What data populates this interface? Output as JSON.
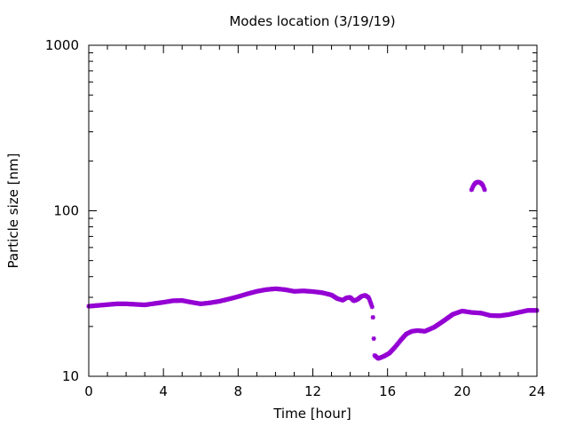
{
  "chart_data": {
    "type": "scatter",
    "title": "Modes location (3/19/19)",
    "xlabel": "Time [hour]",
    "ylabel": "Particle size [nm]",
    "xlim": [
      0,
      24
    ],
    "ylim": [
      10,
      1000
    ],
    "yscale": "log",
    "xticks": [
      0,
      4,
      8,
      12,
      16,
      20,
      24
    ],
    "xtick_labels": [
      "0",
      "4",
      "8",
      "12",
      "16",
      "20",
      "24"
    ],
    "yticks": [
      10,
      100,
      1000
    ],
    "ytick_labels": [
      "10",
      "100",
      "1000"
    ],
    "grid": false,
    "legend": "none",
    "marker_color": "#9400d3",
    "series": [
      {
        "x": [
          0,
          0.5,
          1,
          1.5,
          2,
          2.5,
          3,
          3.5,
          4,
          4.5,
          5,
          5.5,
          6,
          6.5,
          7,
          7.5,
          8,
          8.5,
          9,
          9.5,
          10,
          10.5,
          11,
          11.5,
          12,
          12.5,
          13,
          13.3,
          13.6,
          13.8,
          14.0,
          14.2,
          14.4,
          14.6,
          14.8,
          15.0,
          15.2,
          15.3,
          15.5,
          15.8,
          16.1,
          16.4,
          16.7,
          17.0,
          17.3,
          17.6,
          18.0,
          18.5,
          19.0,
          19.5,
          20.0,
          20.5,
          21.0,
          21.5,
          22.0,
          22.5,
          23.0,
          23.5,
          24.0
        ],
        "y": [
          26.5,
          26.8,
          27.1,
          27.4,
          27.4,
          27.2,
          27.0,
          27.5,
          28.0,
          28.6,
          28.7,
          28.0,
          27.4,
          27.8,
          28.4,
          29.3,
          30.3,
          31.5,
          32.6,
          33.4,
          33.8,
          33.4,
          32.6,
          32.8,
          32.5,
          32.0,
          31.0,
          29.5,
          28.8,
          29.8,
          30.0,
          28.5,
          29.2,
          30.4,
          30.9,
          29.8,
          25.8,
          13.4,
          12.8,
          13.2,
          13.8,
          15.0,
          16.5,
          18.0,
          18.7,
          18.9,
          18.7,
          19.8,
          21.6,
          23.7,
          24.8,
          24.3,
          24.1,
          23.3,
          23.2,
          23.6,
          24.3,
          25.0,
          25.0
        ]
      },
      {
        "x": [
          20.5,
          20.6,
          20.7,
          20.8,
          20.9,
          21.0,
          21.1,
          21.2
        ],
        "y": [
          134,
          142,
          147,
          149,
          149,
          147,
          143,
          134
        ]
      }
    ]
  }
}
